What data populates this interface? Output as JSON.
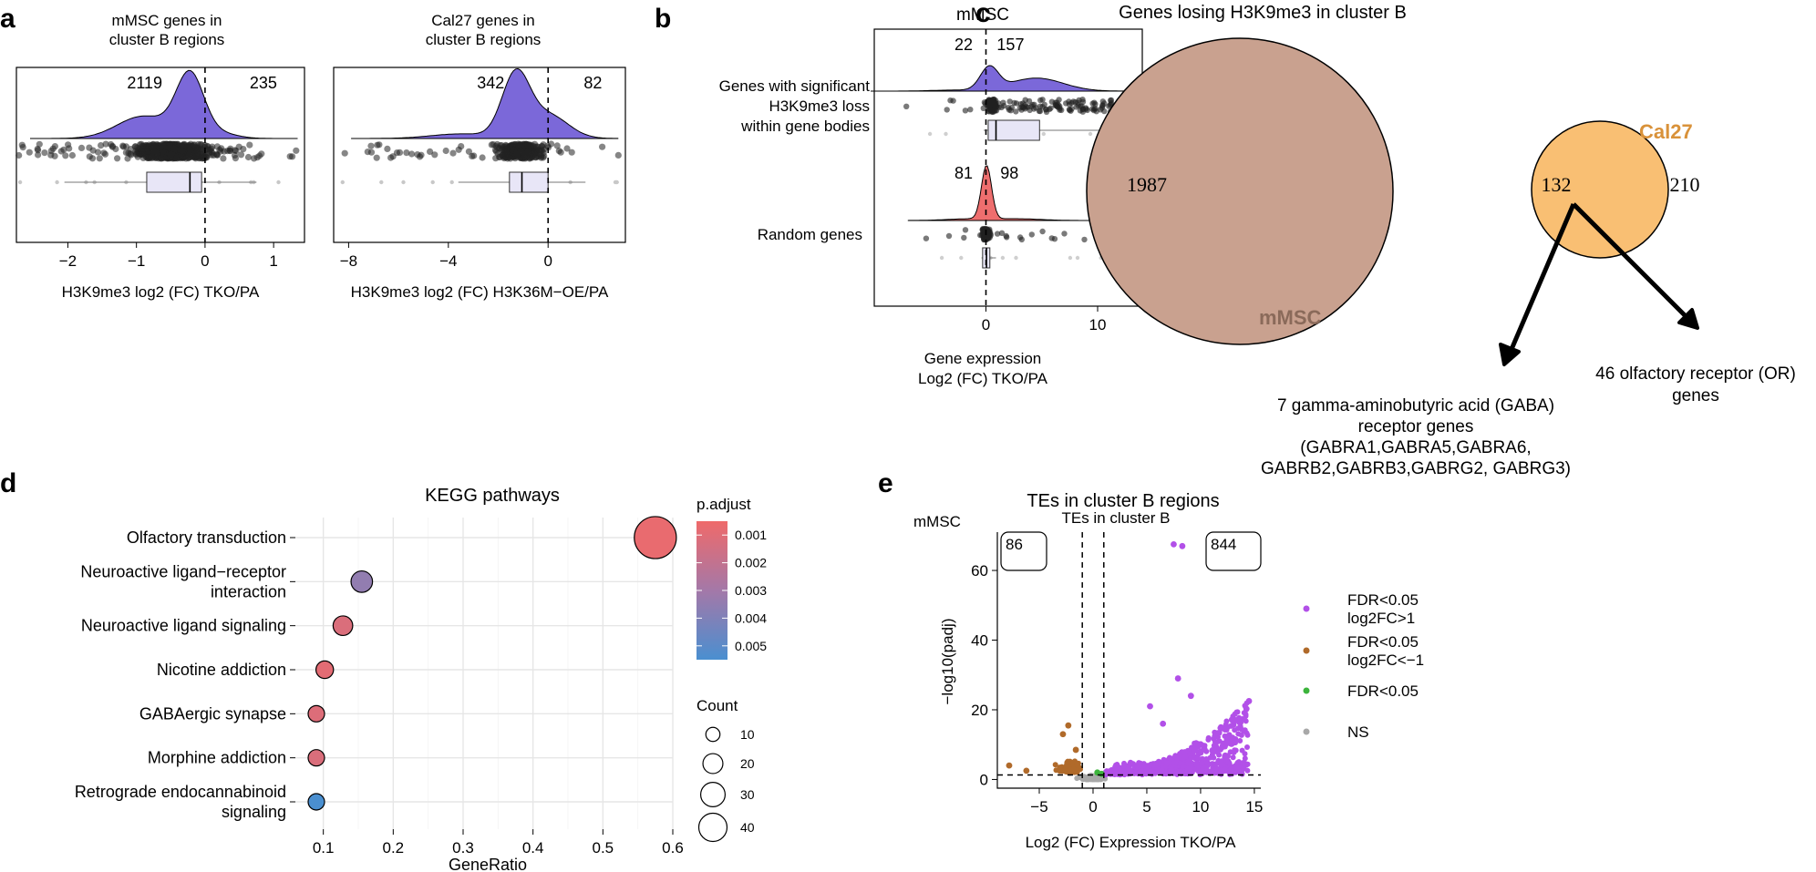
{
  "colors": {
    "violet": "#7b68d9",
    "red": "#ee6e6e",
    "mmsc_circle": "#c9a18f",
    "cal27_circle": "#f9bf73",
    "overlap": "#e39b52",
    "cal27_label": "#d9923a",
    "mmsc_label": "#8a6a5a",
    "up": "#b250e8",
    "down": "#b06a2a",
    "sig": "#3cb43c",
    "ns": "#a8a8a8",
    "box_fill": "#e8e6f7"
  },
  "chart_data": [
    {
      "type": "raincloud",
      "panel": "a",
      "title": "mMSC genes in cluster B regions",
      "title_lines": [
        "mMSC genes in",
        "cluster B regions"
      ],
      "xlabel": "H3K9me3 log2 (FC) TKO/PA",
      "xlim": [
        -2.75,
        1.45
      ],
      "xticks": [
        -2,
        -1,
        0,
        1
      ],
      "xtick_labels": [
        "−2",
        "−1",
        "0",
        "1"
      ],
      "counts": {
        "left": "2119",
        "right": "235"
      },
      "box": {
        "min": -2.05,
        "q1": -0.85,
        "median": -0.22,
        "q3": -0.05,
        "max": 0.75
      },
      "density_peak": -0.2
    },
    {
      "type": "raincloud",
      "panel": "a",
      "title": "Cal27 genes in cluster B regions",
      "title_lines": [
        "Cal27 genes in",
        "cluster B regions"
      ],
      "xlabel": "H3K9me3 log2 (FC) H3K36M−OE/PA",
      "xlim": [
        -8.6,
        3.1
      ],
      "xticks": [
        -8,
        -4,
        0
      ],
      "xtick_labels": [
        "−8",
        "−4",
        "0"
      ],
      "counts": {
        "left": "342",
        "right": "82"
      },
      "box": {
        "min": -3.6,
        "q1": -1.55,
        "median": -1.05,
        "q3": 0.0,
        "max": 1.5
      },
      "density_peak": -1.3
    },
    {
      "type": "raincloud",
      "panel": "b",
      "title": "mMSC",
      "xlabel_lines": [
        "Gene expression",
        "Log2 (FC) TKO/PA"
      ],
      "xlim": [
        -10,
        14
      ],
      "xticks": [
        0,
        10
      ],
      "xtick_labels": [
        "0",
        "10"
      ],
      "significance": "****",
      "groups": [
        {
          "name_lines": [
            "Genes with significant",
            "H3K9me3 loss",
            "within gene bodies"
          ],
          "counts": {
            "left": "22",
            "right": "157"
          },
          "box": {
            "min": -0.2,
            "q1": 0.2,
            "median": 0.9,
            "q3": 4.8,
            "max": 11.8
          }
        },
        {
          "name_lines": [
            "Random genes"
          ],
          "counts": {
            "left": "81",
            "right": "98"
          },
          "box": {
            "min": -0.4,
            "q1": -0.3,
            "median": 0.05,
            "q3": 0.35,
            "max": 0.9
          }
        }
      ]
    },
    {
      "type": "venn",
      "panel": "c",
      "title": "Genes losing H3K9me3 in cluster B",
      "sets": [
        {
          "name": "mMSC",
          "only": "1987"
        },
        {
          "name": "Cal27",
          "only": "210"
        }
      ],
      "overlap": "132",
      "annotations": [
        {
          "lines": [
            "7 gamma-aminobutyric acid (GABA)",
            "receptor genes",
            "(GABRA1,GABRA5,GABRA6,",
            "GABRB2,GABRB3,GABRG2, GABRG3)"
          ]
        },
        {
          "lines": [
            "46 olfactory receptor (OR)",
            "genes"
          ]
        }
      ]
    },
    {
      "type": "dot",
      "panel": "d",
      "title": "KEGG pathways",
      "xlabel": "GeneRatio",
      "xlim": [
        0.06,
        0.6
      ],
      "xticks": [
        0.1,
        0.2,
        0.3,
        0.4,
        0.5,
        0.6
      ],
      "xtick_labels": [
        "0.1",
        "0.2",
        "0.3",
        "0.4",
        "0.5",
        "0.6"
      ],
      "categories": [
        {
          "lines": [
            "Olfactory transduction"
          ],
          "gene_ratio": 0.575,
          "count": 46,
          "p_adjust": 0.0007
        },
        {
          "lines": [
            "Neuroactive ligand−receptor",
            "interaction"
          ],
          "gene_ratio": 0.155,
          "count": 12,
          "p_adjust": 0.0035
        },
        {
          "lines": [
            "Neuroactive ligand signaling"
          ],
          "gene_ratio": 0.128,
          "count": 10,
          "p_adjust": 0.0012
        },
        {
          "lines": [
            "Nicotine addiction"
          ],
          "gene_ratio": 0.102,
          "count": 8,
          "p_adjust": 0.0009
        },
        {
          "lines": [
            "GABAergic synapse"
          ],
          "gene_ratio": 0.09,
          "count": 7,
          "p_adjust": 0.0011
        },
        {
          "lines": [
            "Morphine addiction"
          ],
          "gene_ratio": 0.09,
          "count": 7,
          "p_adjust": 0.0012
        },
        {
          "lines": [
            "Retrograde endocannabinoid",
            "signaling"
          ],
          "gene_ratio": 0.09,
          "count": 7,
          "p_adjust": 0.0057
        }
      ],
      "color_legend": {
        "title": "p.adjust",
        "ticks": [
          "0.001",
          "0.002",
          "0.003",
          "0.004",
          "0.005"
        ]
      },
      "size_legend": {
        "title": "Count",
        "values": [
          10,
          20,
          30,
          40
        ],
        "labels": [
          "10",
          "20",
          "30",
          "40"
        ]
      }
    },
    {
      "type": "scatter",
      "panel": "e",
      "title": "TEs in cluster B regions",
      "subtitle": "TEs in cluster B",
      "corner_label": "mMSC",
      "xlabel": "Log2 (FC) Expression TKO/PA",
      "ylabel": "−log10(padj)",
      "xlim": [
        -8.9,
        15.6
      ],
      "ylim": [
        -2.5,
        71
      ],
      "xticks": [
        -5,
        0,
        5,
        10,
        15
      ],
      "xtick_labels": [
        "−5",
        "0",
        "5",
        "10",
        "15"
      ],
      "yticks": [
        0,
        20,
        40,
        60
      ],
      "ytick_labels": [
        "0",
        "20",
        "40",
        "60"
      ],
      "thresholds": {
        "x": [
          -1,
          1
        ],
        "y": 1.3
      },
      "counts": {
        "left": "86",
        "right": "844"
      },
      "legend": [
        {
          "lines": [
            "FDR<0.05",
            "log2FC>1"
          ],
          "key": "up"
        },
        {
          "lines": [
            "FDR<0.05",
            "log2FC<−1"
          ],
          "key": "down"
        },
        {
          "lines": [
            "FDR<0.05"
          ],
          "key": "sig"
        },
        {
          "lines": [
            "NS"
          ],
          "key": "ns"
        }
      ],
      "highlight_points": [
        {
          "x": 7.5,
          "y": 67.5,
          "group": "up"
        },
        {
          "x": 8.3,
          "y": 67.0,
          "group": "up"
        },
        {
          "x": 7.9,
          "y": 29.0,
          "group": "up"
        },
        {
          "x": 9.1,
          "y": 24.0,
          "group": "up"
        },
        {
          "x": 14.5,
          "y": 22.5,
          "group": "up"
        },
        {
          "x": 5.3,
          "y": 21.0,
          "group": "up"
        },
        {
          "x": 6.5,
          "y": 16.0,
          "group": "up"
        },
        {
          "x": -2.3,
          "y": 15.5,
          "group": "down"
        },
        {
          "x": -2.8,
          "y": 13.0,
          "group": "down"
        },
        {
          "x": -1.6,
          "y": 8.5,
          "group": "down"
        },
        {
          "x": -7.8,
          "y": 4.0,
          "group": "down"
        },
        {
          "x": -6.2,
          "y": 2.5,
          "group": "down"
        },
        {
          "x": 0.4,
          "y": 2.0,
          "group": "sig"
        },
        {
          "x": 0.8,
          "y": 1.6,
          "group": "sig"
        }
      ]
    }
  ],
  "panels": [
    "a",
    "b",
    "c",
    "d",
    "e"
  ]
}
